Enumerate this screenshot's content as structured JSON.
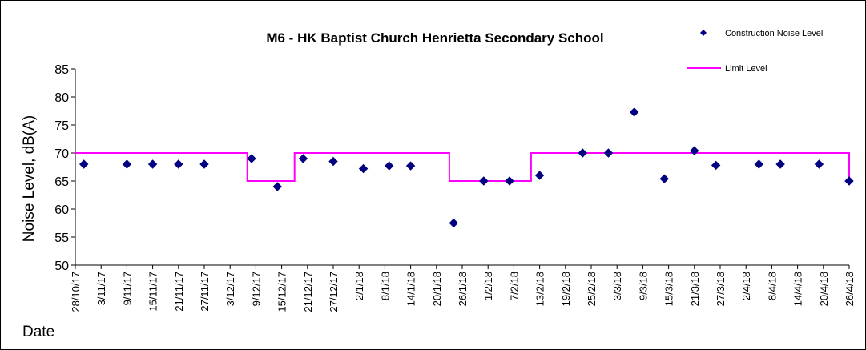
{
  "chart_data": {
    "type": "scatter",
    "title": "M6 - HK Baptist Church Henrietta Secondary School",
    "xlabel": "Date",
    "ylabel": "Noise Level, dB(A)",
    "ylim": [
      50,
      85
    ],
    "yticks": [
      50,
      55,
      60,
      65,
      70,
      75,
      80,
      85
    ],
    "grid": false,
    "legend_position": "top-right",
    "x_tick_labels": [
      "28/10/17",
      "3/11/17",
      "9/11/17",
      "15/11/17",
      "21/11/17",
      "27/11/17",
      "3/12/17",
      "9/12/17",
      "15/12/17",
      "21/12/17",
      "27/12/17",
      "2/1/18",
      "8/1/18",
      "14/1/18",
      "20/1/18",
      "26/1/18",
      "1/2/18",
      "7/2/18",
      "13/2/18",
      "19/2/18",
      "25/2/18",
      "3/3/18",
      "9/3/18",
      "15/3/18",
      "21/3/18",
      "27/3/18",
      "2/4/18",
      "8/4/18",
      "14/4/18",
      "20/4/18",
      "26/4/18"
    ],
    "x_range": [
      "28/10/17",
      "26/4/18"
    ],
    "series": [
      {
        "name": "Construction Noise Level",
        "color": "#000080",
        "marker": "diamond",
        "points": [
          {
            "x": "30/10/17",
            "y": 68
          },
          {
            "x": "9/11/17",
            "y": 68
          },
          {
            "x": "15/11/17",
            "y": 68
          },
          {
            "x": "21/11/17",
            "y": 68
          },
          {
            "x": "27/11/17",
            "y": 68
          },
          {
            "x": "8/12/17",
            "y": 69
          },
          {
            "x": "14/12/17",
            "y": 64
          },
          {
            "x": "20/12/17",
            "y": 69
          },
          {
            "x": "27/12/17",
            "y": 68.5
          },
          {
            "x": "3/1/18",
            "y": 67.2
          },
          {
            "x": "9/1/18",
            "y": 67.7
          },
          {
            "x": "14/1/18",
            "y": 67.7
          },
          {
            "x": "24/1/18",
            "y": 57.5
          },
          {
            "x": "31/1/18",
            "y": 65
          },
          {
            "x": "6/2/18",
            "y": 65
          },
          {
            "x": "13/2/18",
            "y": 66
          },
          {
            "x": "23/2/18",
            "y": 70
          },
          {
            "x": "1/3/18",
            "y": 70
          },
          {
            "x": "7/3/18",
            "y": 77.3
          },
          {
            "x": "14/3/18",
            "y": 65.4
          },
          {
            "x": "21/3/18",
            "y": 70.4
          },
          {
            "x": "26/3/18",
            "y": 67.8
          },
          {
            "x": "5/4/18",
            "y": 68
          },
          {
            "x": "10/4/18",
            "y": 68
          },
          {
            "x": "19/4/18",
            "y": 68
          },
          {
            "x": "26/4/18",
            "y": 65
          }
        ]
      },
      {
        "name": "Limit Level",
        "color": "#ff00ff",
        "type": "step",
        "points": [
          {
            "x": "28/10/17",
            "y": 70
          },
          {
            "x": "7/12/17",
            "y": 70
          },
          {
            "x": "7/12/17",
            "y": 65
          },
          {
            "x": "18/12/17",
            "y": 65
          },
          {
            "x": "18/12/17",
            "y": 70
          },
          {
            "x": "23/1/18",
            "y": 70
          },
          {
            "x": "23/1/18",
            "y": 65
          },
          {
            "x": "11/2/18",
            "y": 65
          },
          {
            "x": "11/2/18",
            "y": 70
          },
          {
            "x": "26/4/18",
            "y": 70
          },
          {
            "x": "26/4/18",
            "y": 65
          }
        ]
      }
    ]
  }
}
